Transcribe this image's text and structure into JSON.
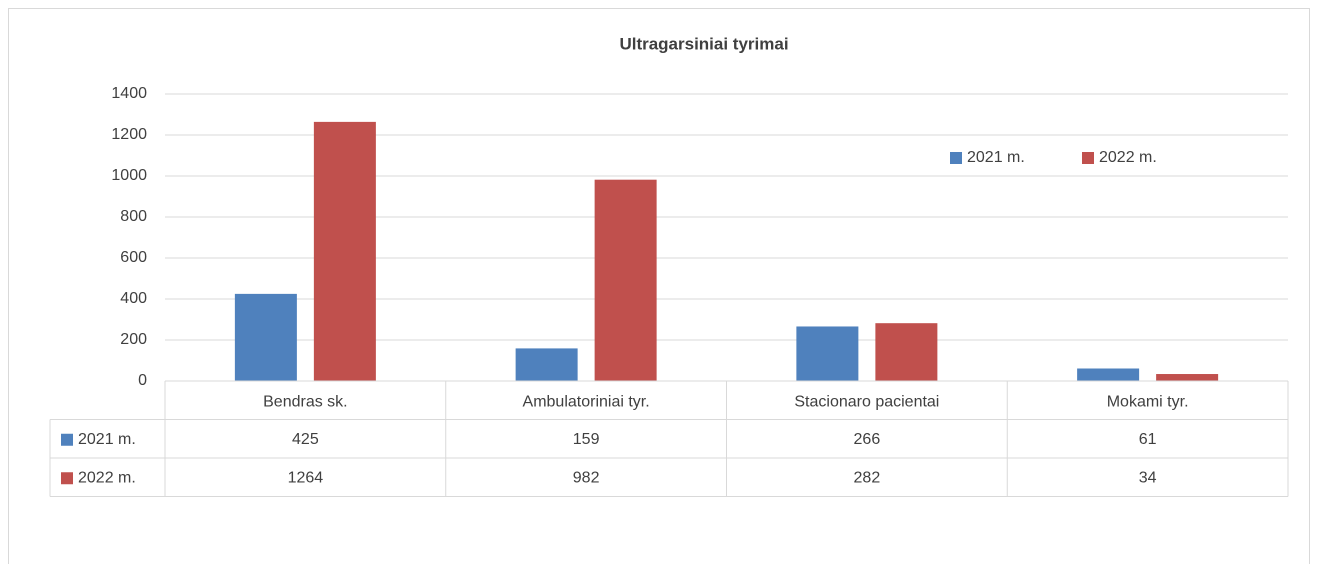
{
  "chart_data": {
    "type": "bar",
    "title": "Ultragarsiniai tyrimai",
    "categories": [
      "Bendras sk.",
      "Ambulatoriniai tyr.",
      "Stacionaro pacientai",
      "Mokami tyr."
    ],
    "series": [
      {
        "name": "2021 m.",
        "color": "#4f81bd",
        "values": [
          425,
          159,
          266,
          61
        ]
      },
      {
        "name": "2022 m.",
        "color": "#c0504d",
        "values": [
          1264,
          982,
          282,
          34
        ]
      }
    ],
    "ylim": [
      0,
      1400
    ],
    "yticks": [
      0,
      200,
      400,
      600,
      800,
      1000,
      1200,
      1400
    ],
    "grid": true,
    "legend": "top-right",
    "data_table": true
  }
}
